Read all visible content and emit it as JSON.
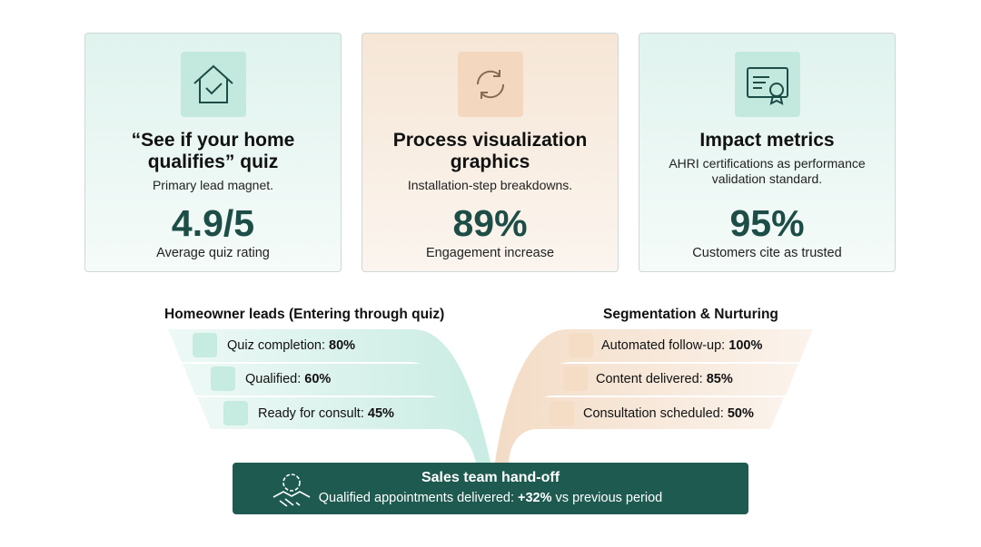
{
  "cards": [
    {
      "title": "“See if your home qualifies” quiz",
      "subtitle": "Primary lead magnet.",
      "metric": "4.9/5",
      "metric_label": "Average quiz rating"
    },
    {
      "title": "Process visualization graphics",
      "subtitle": "Installation-step breakdowns.",
      "metric": "89%",
      "metric_label": "Engagement increase"
    },
    {
      "title": "Impact metrics",
      "subtitle": "AHRI certifications as performance validation standard.",
      "metric": "95%",
      "metric_label": "Customers cite as trusted"
    }
  ],
  "left_funnel": {
    "title": "Homeowner leads (Entering through quiz)",
    "items": [
      {
        "label": "Quiz completion:",
        "value": "80%"
      },
      {
        "label": "Qualified:",
        "value": "60%"
      },
      {
        "label": "Ready for consult:",
        "value": "45%"
      }
    ]
  },
  "right_funnel": {
    "title": "Segmentation & Nurturing",
    "items": [
      {
        "label": "Automated follow-up:",
        "value": "100%"
      },
      {
        "label": "Content delivered:",
        "value": "85%"
      },
      {
        "label": "Consultation scheduled:",
        "value": "50%"
      }
    ]
  },
  "handoff": {
    "title": "Sales team hand-off",
    "text": "Qualified appointments delivered:",
    "value": "+32%",
    "suffix": "vs previous period"
  }
}
